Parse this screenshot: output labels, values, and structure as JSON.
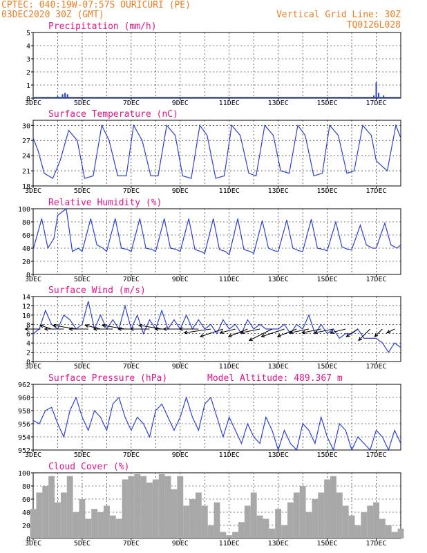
{
  "header": {
    "line1": "CPTEC:   040:19W-07:57S   OURICURI (PE)",
    "line2": "03DEC2020 30Z (GMT)",
    "grid_note": "Vertical Grid Line: 30Z",
    "code": "TQ0126L028"
  },
  "colors": {
    "header": "#ee7d22",
    "title": "#e0158a",
    "series": "#2b3fd6",
    "wind": "#000000",
    "cloud": "#a8a8a8"
  },
  "x_ticks": [
    "3DEC",
    "5DEC",
    "7DEC",
    "9DEC",
    "11DEC",
    "13DEC",
    "15DEC",
    "17DEC"
  ],
  "chart_data": [
    {
      "id": "precip",
      "type": "bar",
      "title": "Precipitation (mm/h)",
      "xlim": [
        3,
        18
      ],
      "ylim": [
        0,
        5
      ],
      "yticks": [
        0,
        1,
        2,
        3,
        4,
        5
      ],
      "x": [
        3.2,
        3.6,
        4.0,
        4.2,
        4.3,
        4.4,
        5.5,
        16.0,
        16.9,
        17.0,
        17.1,
        17.3
      ],
      "values": [
        0.05,
        0.1,
        0.15,
        0.3,
        0.4,
        0.3,
        0.05,
        0.05,
        0.2,
        1.2,
        0.4,
        0.2
      ]
    },
    {
      "id": "temp",
      "type": "line",
      "title": "Surface Temperature (nC)",
      "xlim": [
        3,
        18
      ],
      "ylim": [
        18,
        31
      ],
      "yticks": [
        18,
        21,
        24,
        27,
        30
      ],
      "x": [
        3.0,
        3.2,
        3.45,
        3.8,
        4.1,
        4.45,
        4.8,
        5.1,
        5.45,
        5.8,
        6.1,
        6.45,
        6.8,
        7.1,
        7.45,
        7.8,
        8.1,
        8.45,
        8.8,
        9.1,
        9.45,
        9.8,
        10.1,
        10.45,
        10.8,
        11.1,
        11.45,
        11.8,
        12.1,
        12.45,
        12.8,
        13.1,
        13.45,
        13.8,
        14.1,
        14.45,
        14.8,
        15.1,
        15.45,
        15.8,
        16.1,
        16.45,
        16.8,
        17.0,
        17.1,
        17.45,
        17.8,
        18.0
      ],
      "values": [
        27.5,
        25,
        20.5,
        19.5,
        23,
        29,
        27,
        19.5,
        20,
        30,
        27,
        20,
        20,
        30,
        27,
        20,
        20,
        30,
        28,
        20,
        19.5,
        30,
        28,
        19.5,
        20,
        30,
        28,
        20.5,
        20,
        30,
        28,
        21,
        20.5,
        30,
        28,
        20,
        20.5,
        30,
        28,
        20.5,
        21,
        30,
        28,
        23,
        22.5,
        21,
        30,
        27.5
      ]
    },
    {
      "id": "rh",
      "type": "line",
      "title": "Relative Humidity (%)",
      "xlim": [
        3,
        18
      ],
      "ylim": [
        0,
        100
      ],
      "yticks": [
        0,
        20,
        40,
        60,
        80,
        100
      ],
      "x": [
        3.0,
        3.35,
        3.6,
        3.85,
        4.0,
        4.35,
        4.6,
        4.85,
        5.0,
        5.35,
        5.6,
        5.85,
        6.0,
        6.35,
        6.6,
        6.85,
        7.0,
        7.35,
        7.6,
        7.85,
        8.0,
        8.35,
        8.6,
        8.85,
        9.0,
        9.35,
        9.6,
        9.85,
        10.0,
        10.35,
        10.6,
        10.85,
        11.0,
        11.35,
        11.6,
        11.85,
        12.0,
        12.35,
        12.6,
        12.85,
        13.0,
        13.35,
        13.6,
        13.85,
        14.0,
        14.35,
        14.6,
        14.85,
        15.0,
        15.35,
        15.6,
        15.85,
        16.0,
        16.35,
        16.6,
        16.85,
        17.0,
        17.35,
        17.6,
        17.85,
        18.0
      ],
      "values": [
        38,
        85,
        40,
        55,
        90,
        100,
        35,
        40,
        35,
        85,
        45,
        40,
        35,
        85,
        40,
        38,
        35,
        85,
        40,
        38,
        35,
        85,
        40,
        38,
        35,
        85,
        38,
        35,
        32,
        85,
        38,
        35,
        30,
        85,
        38,
        35,
        32,
        82,
        40,
        36,
        35,
        83,
        40,
        36,
        35,
        84,
        40,
        38,
        36,
        80,
        42,
        38,
        38,
        75,
        45,
        40,
        40,
        78,
        45,
        40,
        45
      ]
    },
    {
      "id": "wind",
      "type": "line",
      "title": "Surface Wind (m/s)",
      "xlim": [
        3,
        18
      ],
      "ylim": [
        0,
        14
      ],
      "yticks": [
        0,
        2,
        4,
        6,
        8,
        10,
        12,
        14
      ],
      "x": [
        3.0,
        3.25,
        3.5,
        3.75,
        4.0,
        4.25,
        4.5,
        4.75,
        5.0,
        5.25,
        5.5,
        5.75,
        6.0,
        6.25,
        6.5,
        6.75,
        7.0,
        7.25,
        7.5,
        7.75,
        8.0,
        8.25,
        8.5,
        8.75,
        9.0,
        9.25,
        9.5,
        9.75,
        10.0,
        10.25,
        10.5,
        10.75,
        11.0,
        11.25,
        11.5,
        11.75,
        12.0,
        12.25,
        12.5,
        12.75,
        13.0,
        13.25,
        13.5,
        13.75,
        14.0,
        14.25,
        14.5,
        14.75,
        15.0,
        15.25,
        15.5,
        15.75,
        16.0,
        16.25,
        16.5,
        16.75,
        17.0,
        17.25,
        17.5,
        17.75,
        18.0
      ],
      "values": [
        6,
        7,
        11,
        8,
        7,
        10,
        9,
        7,
        8,
        13,
        7,
        10,
        7,
        9,
        7,
        12,
        7,
        10,
        6,
        9,
        7,
        11,
        7,
        9,
        7,
        10,
        7,
        9,
        7,
        8,
        6,
        9,
        7,
        8,
        6,
        9,
        7,
        8,
        7,
        7,
        7,
        8,
        6,
        8,
        7,
        10,
        6,
        8,
        6,
        7,
        5,
        6,
        6,
        7,
        5,
        5,
        5,
        4,
        2,
        4,
        3
      ],
      "vectors": {
        "x": [
          3.3,
          3.75,
          4.25,
          4.75,
          5.25,
          5.75,
          6.25,
          6.75,
          7.25,
          7.75,
          8.25,
          8.75,
          9.25,
          9.75,
          10.25,
          10.75,
          11.25,
          11.75,
          12.25,
          12.75,
          13.25,
          13.75,
          14.25,
          14.75,
          15.25,
          15.75,
          16.25,
          16.75,
          17.25,
          17.75
        ],
        "u": [
          -4,
          -3,
          -5,
          -6,
          -5,
          -4,
          -5,
          -6,
          -5,
          -5,
          -6,
          -5,
          -6,
          -5,
          -7,
          -6,
          -4,
          -5,
          -5,
          -6,
          -6,
          -5,
          -5,
          -5,
          -5,
          -4,
          -3,
          -3,
          -2,
          -2
        ],
        "v": [
          0,
          1,
          0,
          1,
          0,
          1,
          0,
          1,
          0,
          0,
          1,
          0,
          0,
          0,
          -1,
          -2,
          -1,
          -2,
          -1,
          -3,
          -2,
          -2,
          -1,
          -1,
          -1,
          -1,
          -2,
          -3,
          -2,
          -1
        ]
      }
    },
    {
      "id": "pres",
      "type": "line",
      "title": "Surface Pressure (hPa)",
      "note": "Model Altitude: 489.367 m",
      "xlim": [
        3,
        18
      ],
      "ylim": [
        952,
        962
      ],
      "yticks": [
        952,
        954,
        956,
        958,
        960,
        962
      ],
      "x": [
        3.0,
        3.25,
        3.5,
        3.75,
        4.0,
        4.25,
        4.5,
        4.75,
        5.0,
        5.25,
        5.5,
        5.75,
        6.0,
        6.25,
        6.5,
        6.75,
        7.0,
        7.25,
        7.5,
        7.75,
        8.0,
        8.25,
        8.5,
        8.75,
        9.0,
        9.25,
        9.5,
        9.75,
        10.0,
        10.25,
        10.5,
        10.75,
        11.0,
        11.25,
        11.5,
        11.75,
        12.0,
        12.25,
        12.5,
        12.75,
        13.0,
        13.25,
        13.5,
        13.75,
        14.0,
        14.25,
        14.5,
        14.75,
        15.0,
        15.25,
        15.5,
        15.75,
        16.0,
        16.25,
        16.5,
        16.75,
        17.0,
        17.25,
        17.5,
        17.75,
        18.0
      ],
      "values": [
        956.5,
        956,
        958,
        958.5,
        956,
        954,
        958,
        960,
        957,
        955,
        958,
        957,
        955,
        959,
        960,
        957,
        955,
        957,
        956,
        954,
        958,
        959,
        957,
        955,
        957,
        960,
        957,
        955,
        959,
        960,
        957,
        954,
        957,
        955,
        953,
        956,
        954,
        953,
        957,
        955,
        952,
        955,
        953,
        952,
        956,
        955,
        953,
        957,
        954,
        952,
        956,
        955,
        952,
        954,
        953,
        952,
        955,
        954,
        952,
        955,
        953
      ]
    },
    {
      "id": "cloud",
      "type": "bar",
      "title": "Cloud Cover (%)",
      "xlim": [
        3,
        18
      ],
      "ylim": [
        0,
        100
      ],
      "yticks": [
        0,
        20,
        40,
        60,
        80,
        100
      ],
      "x": [
        3.0,
        3.25,
        3.5,
        3.75,
        4.0,
        4.25,
        4.5,
        4.75,
        5.0,
        5.25,
        5.5,
        5.75,
        6.0,
        6.25,
        6.5,
        6.75,
        7.0,
        7.25,
        7.5,
        7.75,
        8.0,
        8.25,
        8.5,
        8.75,
        9.0,
        9.25,
        9.5,
        9.75,
        10.0,
        10.25,
        10.5,
        10.75,
        11.0,
        11.25,
        11.5,
        11.75,
        12.0,
        12.25,
        12.5,
        12.75,
        13.0,
        13.25,
        13.5,
        13.75,
        14.0,
        14.25,
        14.5,
        14.75,
        15.0,
        15.25,
        15.5,
        15.75,
        16.0,
        16.25,
        16.5,
        16.75,
        17.0,
        17.25,
        17.5,
        17.75,
        18.0
      ],
      "values": [
        45,
        70,
        80,
        95,
        55,
        70,
        95,
        40,
        60,
        30,
        45,
        40,
        50,
        35,
        30,
        90,
        95,
        98,
        95,
        85,
        90,
        98,
        95,
        75,
        95,
        50,
        60,
        70,
        50,
        20,
        55,
        10,
        5,
        10,
        25,
        50,
        70,
        35,
        30,
        15,
        45,
        20,
        55,
        70,
        80,
        40,
        60,
        70,
        90,
        95,
        70,
        50,
        35,
        20,
        40,
        50,
        55,
        30,
        20,
        10,
        15
      ]
    }
  ]
}
